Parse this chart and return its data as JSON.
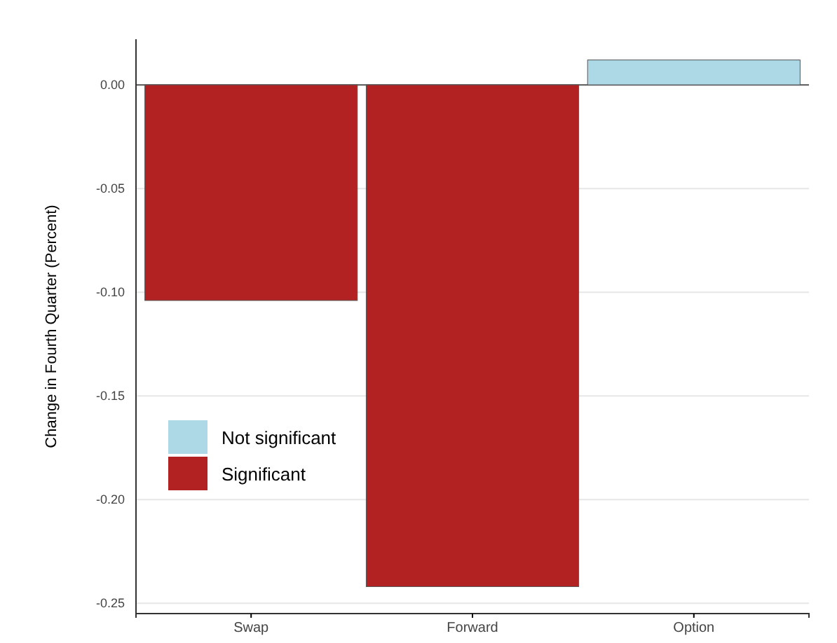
{
  "chart_data": {
    "type": "bar",
    "ylabel": "Change in Fourth Quarter (Percent)",
    "categories": [
      "Swap",
      "Forward",
      "Option"
    ],
    "series": [
      {
        "name": "Not significant",
        "color": "#add8e6",
        "values": [
          null,
          null,
          0.012
        ]
      },
      {
        "name": "Significant",
        "color": "#b22222",
        "values": [
          -0.104,
          -0.242,
          null
        ]
      }
    ],
    "ylim": [
      -0.255,
      0.022
    ],
    "yticks": [
      {
        "value": 0,
        "label": "0.00"
      },
      {
        "value": -0.05,
        "label": "-0.05"
      },
      {
        "value": -0.1,
        "label": "-0.10"
      },
      {
        "value": -0.15,
        "label": "-0.15"
      },
      {
        "value": -0.2,
        "label": "-0.20"
      },
      {
        "value": -0.25,
        "label": "-0.25"
      }
    ],
    "grid": "y",
    "legend": "left"
  }
}
